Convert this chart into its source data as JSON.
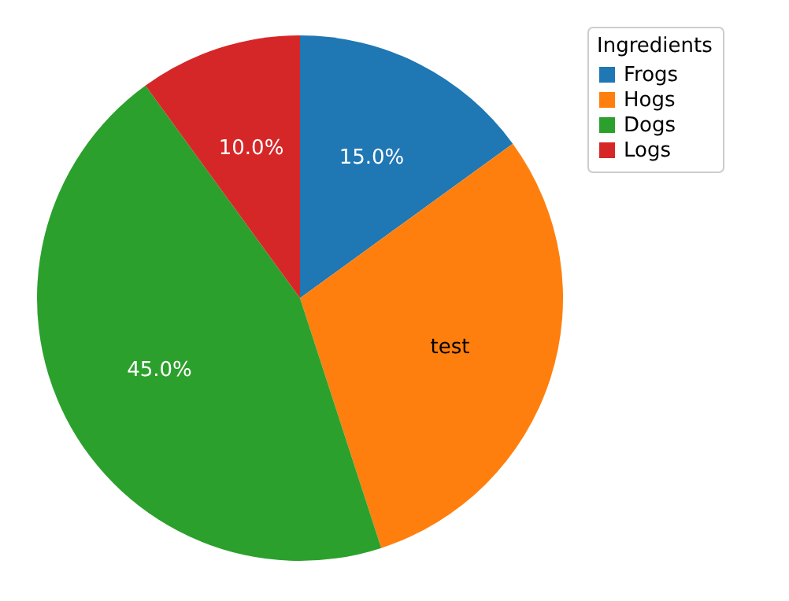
{
  "chart_data": {
    "type": "pie",
    "legend_title": "Ingredients",
    "legend": "right",
    "categories": [
      "Frogs",
      "Hogs",
      "Dogs",
      "Logs"
    ],
    "values": [
      15,
      30,
      45,
      10
    ],
    "colors": [
      "#1f77b4",
      "#ff7f0e",
      "#2ca02c",
      "#d62728"
    ],
    "value_labels": [
      "15.0%",
      "test",
      "45.0%",
      "10.0%"
    ]
  }
}
